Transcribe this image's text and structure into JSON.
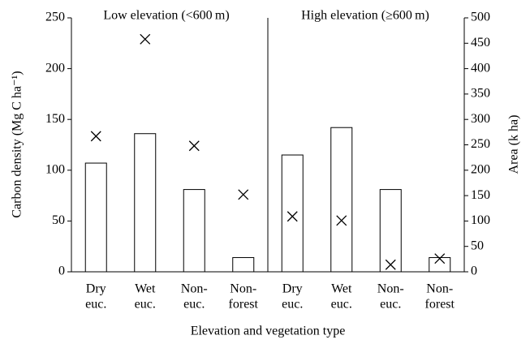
{
  "chart_data": {
    "type": "bar",
    "categories": [
      [
        "Dry",
        "euc."
      ],
      [
        "Wet",
        "euc."
      ],
      [
        "Non-",
        "euc."
      ],
      [
        "Non-",
        "forest"
      ],
      [
        "Dry",
        "euc."
      ],
      [
        "Wet",
        "euc."
      ],
      [
        "Non-",
        "euc."
      ],
      [
        "Non-",
        "forest"
      ]
    ],
    "series": [
      {
        "color": "#ffffff",
        "values": [
          107,
          136,
          81,
          14,
          115,
          142,
          81,
          14
        ]
      },
      {
        "color": "#000000",
        "axis": "y2",
        "marker": "x",
        "values": [
          267,
          458,
          248,
          152,
          109,
          101,
          14,
          26
        ]
      }
    ],
    "ylim": [
      0,
      250
    ],
    "yticks": [
      0,
      50,
      100,
      150,
      200,
      250
    ],
    "y2lim": [
      0,
      500
    ],
    "y2ticks": [
      0,
      50,
      100,
      150,
      200,
      250,
      300,
      350,
      400,
      450,
      500
    ],
    "ylabel": "Carbon density (Mg C ha⁻¹)",
    "y2label": "Area (k ha)",
    "xlabel": "Elevation and vegetation type",
    "annotations": [
      "Low elevation (<600 m)",
      "High elevation (≥600 m)"
    ]
  }
}
